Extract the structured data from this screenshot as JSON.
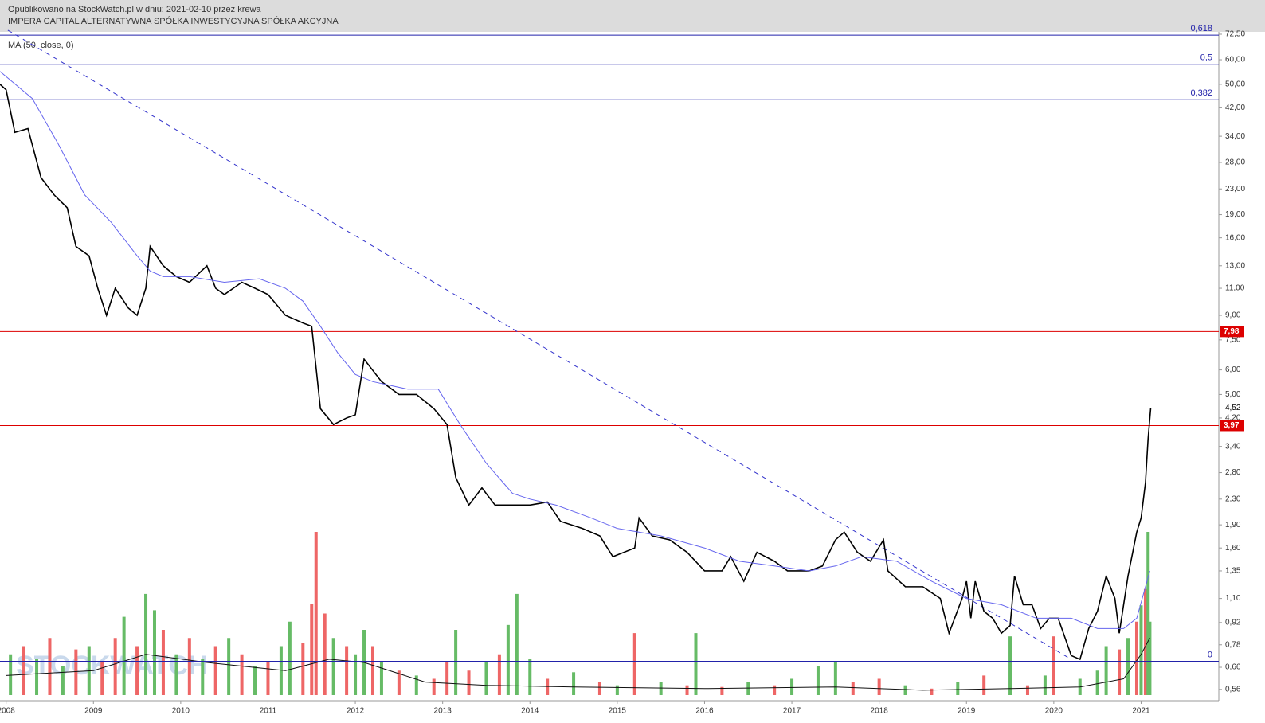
{
  "chart_data": {
    "type": "line",
    "publisher": "Opublikowano na StockWatch.pl w dniu: 2021-02-10 przez krewa",
    "title": "IMPERA CAPITAL ALTERNATYWNA SPÓŁKA INWESTYCYJNA SPÓŁKA AKCYJNA",
    "indicator": "MA (50, close, 0)",
    "watermark": "STOCKWATCH",
    "log_scale": true,
    "grid": false,
    "xlim": [
      2007.93,
      2021.89
    ],
    "xticks": [
      2008,
      2009,
      2010,
      2011,
      2012,
      2013,
      2014,
      2015,
      2016,
      2017,
      2018,
      2019,
      2020,
      2021
    ],
    "ylim": [
      0.515,
      73.8
    ],
    "yticks": [
      {
        "value": 72.5,
        "label": "72,50"
      },
      {
        "value": 60,
        "label": "60,00"
      },
      {
        "value": 50,
        "label": "50,00"
      },
      {
        "value": 42,
        "label": "42,00"
      },
      {
        "value": 34,
        "label": "34,00"
      },
      {
        "value": 28,
        "label": "28,00"
      },
      {
        "value": 23,
        "label": "23,00"
      },
      {
        "value": 19,
        "label": "19,00"
      },
      {
        "value": 16,
        "label": "16,00"
      },
      {
        "value": 13,
        "label": "13,00"
      },
      {
        "value": 11,
        "label": "11,00"
      },
      {
        "value": 9,
        "label": "9,00"
      },
      {
        "value": 7.5,
        "label": "7,50"
      },
      {
        "value": 6,
        "label": "6,00"
      },
      {
        "value": 5,
        "label": "5,00"
      },
      {
        "value": 4.2,
        "label": "4,20"
      },
      {
        "value": 3.4,
        "label": "3,40"
      },
      {
        "value": 2.8,
        "label": "2,80"
      },
      {
        "value": 2.3,
        "label": "2,30"
      },
      {
        "value": 1.9,
        "label": "1,90"
      },
      {
        "value": 1.6,
        "label": "1,60"
      },
      {
        "value": 1.35,
        "label": "1,35"
      },
      {
        "value": 1.1,
        "label": "1,10"
      },
      {
        "value": 0.92,
        "label": "0,92"
      },
      {
        "value": 0.78,
        "label": "0,78"
      },
      {
        "value": 0.66,
        "label": "0,66"
      },
      {
        "value": 0.56,
        "label": "0,56"
      }
    ],
    "series": [
      {
        "name": "price",
        "color": "#000000",
        "x": [
          2007.93,
          2008.0,
          2008.1,
          2008.25,
          2008.4,
          2008.55,
          2008.7,
          2008.8,
          2008.95,
          2009.05,
          2009.15,
          2009.25,
          2009.4,
          2009.5,
          2009.6,
          2009.65,
          2009.8,
          2009.95,
          2010.1,
          2010.3,
          2010.4,
          2010.5,
          2010.7,
          2010.85,
          2011.0,
          2011.2,
          2011.4,
          2011.5,
          2011.6,
          2011.75,
          2011.9,
          2012.0,
          2012.1,
          2012.3,
          2012.5,
          2012.7,
          2012.9,
          2013.05,
          2013.15,
          2013.3,
          2013.45,
          2013.6,
          2013.8,
          2014.0,
          2014.2,
          2014.35,
          2014.6,
          2014.8,
          2014.95,
          2015.2,
          2015.25,
          2015.4,
          2015.6,
          2015.8,
          2016.0,
          2016.2,
          2016.3,
          2016.45,
          2016.6,
          2016.8,
          2016.95,
          2017.2,
          2017.35,
          2017.5,
          2017.6,
          2017.75,
          2017.9,
          2018.05,
          2018.1,
          2018.3,
          2018.5,
          2018.7,
          2018.8,
          2018.95,
          2019.0,
          2019.05,
          2019.1,
          2019.2,
          2019.3,
          2019.4,
          2019.5,
          2019.55,
          2019.65,
          2019.75,
          2019.85,
          2019.95,
          2020.05,
          2020.2,
          2020.3,
          2020.4,
          2020.5,
          2020.6,
          2020.7,
          2020.75,
          2020.85,
          2020.95,
          2021.0,
          2021.05,
          2021.08,
          2021.11
        ],
        "values": [
          50,
          48,
          35,
          36,
          25,
          22,
          20,
          15,
          14,
          11,
          9,
          11,
          9.5,
          9,
          11,
          15,
          13,
          12,
          11.5,
          13,
          11,
          10.5,
          11.5,
          11,
          10.5,
          9,
          8.5,
          8.3,
          4.5,
          4,
          4.2,
          4.3,
          6.5,
          5.5,
          5,
          5,
          4.5,
          4.0,
          2.7,
          2.2,
          2.5,
          2.2,
          2.2,
          2.2,
          2.25,
          1.95,
          1.85,
          1.75,
          1.5,
          1.6,
          2.0,
          1.75,
          1.7,
          1.55,
          1.35,
          1.35,
          1.5,
          1.25,
          1.55,
          1.45,
          1.35,
          1.35,
          1.4,
          1.7,
          1.8,
          1.55,
          1.45,
          1.7,
          1.35,
          1.2,
          1.2,
          1.1,
          0.85,
          1.1,
          1.25,
          0.95,
          1.25,
          1.0,
          0.95,
          0.85,
          0.9,
          1.3,
          1.05,
          1.05,
          0.88,
          0.95,
          0.95,
          0.72,
          0.7,
          0.88,
          1.0,
          1.3,
          1.1,
          0.85,
          1.3,
          1.8,
          2.0,
          2.6,
          3.6,
          4.52
        ]
      },
      {
        "name": "MA",
        "color": "#6666ee",
        "x": [
          2007.93,
          2008.3,
          2008.6,
          2008.9,
          2009.2,
          2009.5,
          2009.65,
          2009.8,
          2010.1,
          2010.5,
          2010.9,
          2011.2,
          2011.4,
          2011.6,
          2011.8,
          2012.0,
          2012.2,
          2012.6,
          2012.95,
          2013.2,
          2013.5,
          2013.8,
          2014.0,
          2014.3,
          2014.7,
          2015.0,
          2015.5,
          2016.0,
          2016.4,
          2016.8,
          2017.2,
          2017.5,
          2017.8,
          2018.2,
          2018.6,
          2019.0,
          2019.4,
          2019.8,
          2020.2,
          2020.5,
          2020.8,
          2020.95,
          2021.05,
          2021.1
        ],
        "values": [
          55,
          45,
          32,
          22,
          18,
          14,
          12.5,
          12,
          12,
          11.5,
          11.8,
          11,
          10,
          8.3,
          6.8,
          5.8,
          5.5,
          5.2,
          5.2,
          4.0,
          3.0,
          2.4,
          2.3,
          2.2,
          2.0,
          1.85,
          1.75,
          1.6,
          1.45,
          1.4,
          1.35,
          1.4,
          1.5,
          1.45,
          1.25,
          1.1,
          1.05,
          0.95,
          0.95,
          0.88,
          0.88,
          0.95,
          1.2,
          1.35
        ]
      }
    ],
    "trendline": {
      "color": "#3333cc",
      "x": [
        2008.02,
        2020.2
      ],
      "values": [
        74.7,
        0.7
      ]
    },
    "levels": [
      {
        "value": 72,
        "label": "0,618",
        "color": "#2222aa"
      },
      {
        "value": 58,
        "label": "0,5",
        "color": "#2222aa"
      },
      {
        "value": 44.6,
        "label": "0,382",
        "color": "#2222aa"
      },
      {
        "value": 0.69,
        "label": "0",
        "color": "#2222aa"
      },
      {
        "value": 7.98,
        "label": "7,98",
        "color": "#dd0000"
      },
      {
        "value": 3.97,
        "label": "3,97",
        "color": "#dd0000"
      }
    ],
    "last_price": {
      "value": 4.52,
      "label": "4,52"
    },
    "volume": {
      "ylim": [
        0,
        100
      ],
      "up_color": "#66bb66",
      "down_color": "#ee6666",
      "x": [
        2008.05,
        2008.2,
        2008.35,
        2008.5,
        2008.65,
        2008.8,
        2008.95,
        2009.1,
        2009.25,
        2009.35,
        2009.5,
        2009.6,
        2009.7,
        2009.8,
        2009.95,
        2010.1,
        2010.25,
        2010.4,
        2010.55,
        2010.7,
        2010.85,
        2011.0,
        2011.15,
        2011.25,
        2011.4,
        2011.5,
        2011.55,
        2011.65,
        2011.75,
        2011.9,
        2012.0,
        2012.1,
        2012.2,
        2012.3,
        2012.5,
        2012.7,
        2012.9,
        2013.05,
        2013.15,
        2013.3,
        2013.5,
        2013.65,
        2013.75,
        2013.85,
        2014.0,
        2014.2,
        2014.5,
        2014.8,
        2015.0,
        2015.2,
        2015.5,
        2015.8,
        2015.9,
        2016.2,
        2016.5,
        2016.8,
        2017.0,
        2017.3,
        2017.5,
        2017.7,
        2018.0,
        2018.3,
        2018.6,
        2018.9,
        2019.2,
        2019.5,
        2019.7,
        2019.9,
        2020.0,
        2020.3,
        2020.5,
        2020.6,
        2020.75,
        2020.85,
        2020.95,
        2021.0,
        2021.05,
        2021.08,
        2021.1
      ],
      "values": [
        25,
        30,
        22,
        35,
        18,
        28,
        30,
        20,
        35,
        48,
        30,
        62,
        52,
        40,
        25,
        35,
        22,
        30,
        35,
        25,
        18,
        20,
        30,
        45,
        32,
        56,
        100,
        50,
        35,
        30,
        25,
        40,
        30,
        20,
        15,
        12,
        10,
        20,
        40,
        15,
        20,
        25,
        43,
        62,
        22,
        10,
        14,
        8,
        6,
        38,
        8,
        6,
        38,
        5,
        8,
        6,
        10,
        18,
        20,
        8,
        10,
        6,
        4,
        8,
        12,
        36,
        6,
        12,
        36,
        10,
        15,
        30,
        28,
        35,
        45,
        55,
        65,
        100,
        45
      ],
      "up": [
        true,
        false,
        true,
        false,
        true,
        false,
        true,
        false,
        false,
        true,
        false,
        true,
        true,
        false,
        true,
        false,
        true,
        false,
        true,
        false,
        true,
        false,
        true,
        true,
        false,
        false,
        false,
        false,
        true,
        false,
        true,
        true,
        false,
        true,
        false,
        true,
        false,
        false,
        true,
        false,
        true,
        false,
        true,
        true,
        true,
        false,
        true,
        false,
        true,
        false,
        true,
        false,
        true,
        false,
        true,
        false,
        true,
        true,
        true,
        false,
        false,
        true,
        false,
        true,
        false,
        true,
        false,
        true,
        false,
        true,
        true,
        true,
        false,
        true,
        false,
        true,
        false,
        true,
        true
      ],
      "ma_color": "#111111",
      "ma_x": [
        2008.0,
        2009.0,
        2009.6,
        2010.3,
        2011.2,
        2011.7,
        2012.1,
        2012.8,
        2013.5,
        2014.5,
        2016.0,
        2017.5,
        2018.5,
        2019.5,
        2020.3,
        2020.8,
        2021.0,
        2021.1
      ],
      "ma_values": [
        12,
        15,
        25,
        20,
        15,
        22,
        20,
        8,
        6,
        5,
        4,
        5,
        3,
        4,
        5,
        10,
        25,
        35
      ]
    }
  }
}
